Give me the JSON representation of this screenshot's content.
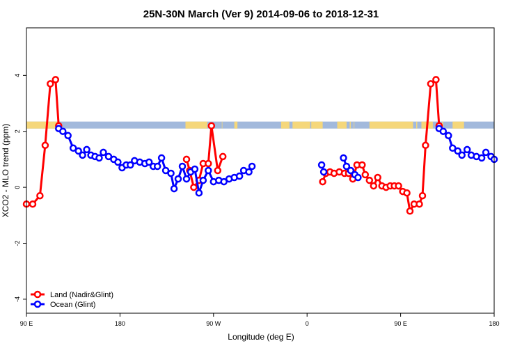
{
  "chart_data": {
    "type": "line",
    "title": "25N-30N March (Ver 9)   2014-09-06 to 2018-12-31",
    "xlabel": "Longitude (deg E)",
    "ylabel": "XCO2 - MLO trend (ppm)",
    "xlim": [
      90,
      540
    ],
    "ylim": [
      -4.5,
      5.7
    ],
    "x_ticks": [
      {
        "value": 90,
        "label": "90 E"
      },
      {
        "value": 180,
        "label": "180"
      },
      {
        "value": 270,
        "label": "90 W"
      },
      {
        "value": 360,
        "label": "0"
      },
      {
        "value": 450,
        "label": "90 E"
      },
      {
        "value": 540,
        "label": "180"
      }
    ],
    "y_ticks": [
      {
        "value": -4,
        "label": "-4"
      },
      {
        "value": -2,
        "label": "-2"
      },
      {
        "value": 0,
        "label": "0"
      },
      {
        "value": 2,
        "label": "2"
      },
      {
        "value": 4,
        "label": "4"
      }
    ],
    "land_ocean_band": {
      "y_range": [
        2.1,
        2.35
      ],
      "ocean_color": "#a2b9dc",
      "land_color": "#f5d77b",
      "land_segments": [
        [
          80,
          121
        ],
        [
          243,
          264
        ],
        [
          278,
          278.5
        ],
        [
          290,
          293
        ],
        [
          335,
          343
        ],
        [
          346,
          363
        ],
        [
          364,
          375
        ],
        [
          389,
          398
        ],
        [
          401,
          402
        ],
        [
          405,
          405.5
        ],
        [
          420,
          462
        ],
        [
          465,
          466
        ],
        [
          470,
          481
        ],
        [
          490,
          491
        ],
        [
          500,
          511
        ]
      ]
    },
    "legend_position": "bottom-left",
    "series": [
      {
        "name": "Land (Nadir&Glint)",
        "color": "#ff0000",
        "segments": [
          [
            [
              90,
              -0.6
            ],
            [
              96,
              -0.6
            ],
            [
              103,
              -0.3
            ],
            [
              108,
              1.5
            ],
            [
              113,
              3.7
            ],
            [
              118,
              3.85
            ],
            [
              121,
              2.2
            ]
          ],
          [
            [
              244,
              1.0
            ],
            [
              247,
              0.6
            ],
            [
              251,
              0.0
            ],
            [
              256,
              0.25
            ],
            [
              260,
              0.85
            ],
            [
              265,
              0.85
            ],
            [
              268,
              2.2
            ],
            [
              274,
              0.6
            ],
            [
              279,
              1.1
            ]
          ],
          [
            [
              375,
              0.2
            ],
            [
              378,
              0.5
            ],
            [
              382,
              0.55
            ],
            [
              386,
              0.5
            ],
            [
              391,
              0.55
            ],
            [
              396,
              0.5
            ],
            [
              400,
              0.5
            ],
            [
              404,
              0.3
            ],
            [
              408,
              0.8
            ],
            [
              413,
              0.8
            ],
            [
              416,
              0.45
            ],
            [
              420,
              0.25
            ],
            [
              424,
              0.05
            ],
            [
              428,
              0.35
            ],
            [
              432,
              0.05
            ],
            [
              436,
              0.0
            ],
            [
              440,
              0.05
            ],
            [
              444,
              0.05
            ],
            [
              448,
              0.05
            ],
            [
              452,
              -0.15
            ],
            [
              456,
              -0.2
            ],
            [
              459,
              -0.85
            ],
            [
              463,
              -0.6
            ],
            [
              468,
              -0.6
            ],
            [
              471,
              -0.3
            ],
            [
              474,
              1.5
            ],
            [
              479,
              3.7
            ],
            [
              484,
              3.85
            ],
            [
              487,
              2.2
            ]
          ]
        ]
      },
      {
        "name": "Ocean (Glint)",
        "color": "#0000ff",
        "segments": [
          [
            [
              121,
              2.1
            ],
            [
              125,
              2.0
            ],
            [
              130,
              1.85
            ],
            [
              135,
              1.4
            ],
            [
              140,
              1.3
            ],
            [
              144,
              1.15
            ],
            [
              148,
              1.35
            ],
            [
              152,
              1.15
            ],
            [
              156,
              1.1
            ],
            [
              160,
              1.05
            ],
            [
              164,
              1.25
            ],
            [
              169,
              1.1
            ],
            [
              174,
              1.0
            ],
            [
              178,
              0.9
            ],
            [
              182,
              0.7
            ],
            [
              186,
              0.8
            ],
            [
              190,
              0.8
            ],
            [
              194,
              0.95
            ],
            [
              199,
              0.9
            ],
            [
              204,
              0.85
            ],
            [
              208,
              0.9
            ],
            [
              212,
              0.75
            ],
            [
              216,
              0.75
            ],
            [
              220,
              1.05
            ],
            [
              224,
              0.6
            ],
            [
              229,
              0.5
            ],
            [
              232,
              -0.05
            ],
            [
              236,
              0.3
            ],
            [
              240,
              0.75
            ],
            [
              244,
              0.3
            ],
            [
              248,
              0.55
            ],
            [
              252,
              0.65
            ],
            [
              256,
              -0.2
            ],
            [
              260,
              0.25
            ],
            [
              265,
              0.6
            ],
            [
              270,
              0.2
            ],
            [
              275,
              0.25
            ],
            [
              280,
              0.2
            ],
            [
              285,
              0.3
            ],
            [
              290,
              0.35
            ],
            [
              295,
              0.4
            ],
            [
              299,
              0.6
            ],
            [
              304,
              0.55
            ],
            [
              307,
              0.75
            ]
          ],
          [
            [
              374,
              0.8
            ],
            [
              376,
              0.55
            ]
          ],
          [
            [
              395,
              1.05
            ],
            [
              398,
              0.75
            ],
            [
              402,
              0.6
            ],
            [
              406,
              0.45
            ],
            [
              409,
              0.35
            ]
          ],
          [
            [
              487,
              2.1
            ],
            [
              491,
              2.0
            ],
            [
              496,
              1.85
            ],
            [
              500,
              1.4
            ],
            [
              505,
              1.3
            ],
            [
              509,
              1.15
            ],
            [
              514,
              1.35
            ],
            [
              518,
              1.15
            ],
            [
              523,
              1.1
            ],
            [
              528,
              1.05
            ],
            [
              532,
              1.25
            ],
            [
              537,
              1.1
            ],
            [
              540,
              1.0
            ]
          ]
        ]
      }
    ]
  }
}
